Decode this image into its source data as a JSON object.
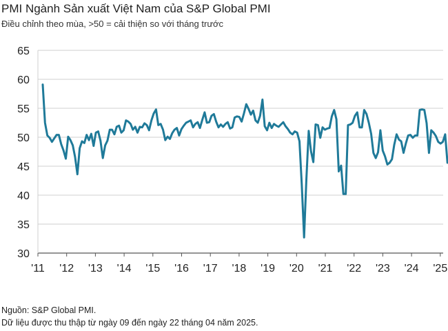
{
  "chart_data": {
    "type": "line",
    "title": "PMI Ngành Sản xuất Việt Nam của S&P Global PMI",
    "subtitle": "Điều chỉnh theo mùa, >50 = cải thiện so với tháng trước",
    "source_lines": [
      "Nguồn: S&P Global PMI.",
      "Dữ liệu được thu thập từ ngày 09 đến ngày 22 tháng 04 năm 2025."
    ],
    "ylim": [
      30,
      65
    ],
    "yticks": [
      "65",
      "60",
      "55",
      "50",
      "45",
      "40",
      "35",
      "30"
    ],
    "xticks": [
      "'11",
      "'12",
      "'13",
      "'14",
      "'15",
      "'16",
      "'17",
      "'18",
      "'19",
      "'20",
      "'21",
      "'22",
      "'23",
      "'24",
      "'25"
    ],
    "x_start": "2011-03",
    "x_end": "2025-04",
    "grid": true,
    "legend": "none",
    "line_color": "#1f7a99",
    "series": [
      {
        "values": [
          59.1,
          52.5,
          50.3,
          49.9,
          49.2,
          49.8,
          50.4,
          50.4,
          48.8,
          47.7,
          46.3,
          50.1,
          49.5,
          48.6,
          46.6,
          43.6,
          48.1,
          49.3,
          49.0,
          50.4,
          49.5,
          50.6,
          48.5,
          50.8,
          51.0,
          49.4,
          46.4,
          48.6,
          49.4,
          51.3,
          51.3,
          50.5,
          51.8,
          52.0,
          50.8,
          51.2,
          52.9,
          52.7,
          52.3,
          51.3,
          51.8,
          50.8,
          51.8,
          51.7,
          52.4,
          52.1,
          51.2,
          52.9,
          54.1,
          54.8,
          52.1,
          52.3,
          51.3,
          49.5,
          50.1,
          49.7,
          50.7,
          51.3,
          51.6,
          50.3,
          51.4,
          52.0,
          52.5,
          52.7,
          52.9,
          51.7,
          52.3,
          52.6,
          51.6,
          53.0,
          54.3,
          52.5,
          52.6,
          53.7,
          54.0,
          52.7,
          51.7,
          52.2,
          51.8,
          52.3,
          52.6,
          51.5,
          51.7,
          53.4,
          53.6,
          53.5,
          52.7,
          54.1,
          55.7,
          54.9,
          53.9,
          54.6,
          52.9,
          52.5,
          53.7,
          56.5,
          51.9,
          51.2,
          52.5,
          51.6,
          52.3,
          52.0,
          51.8,
          52.2,
          52.6,
          51.9,
          51.4,
          50.8,
          50.5,
          51.0,
          50.8,
          49.3,
          41.9,
          32.7,
          42.7,
          51.1,
          47.6,
          45.7,
          52.2,
          52.1,
          49.9,
          51.7,
          51.3,
          51.5,
          51.6,
          53.6,
          54.7,
          53.1,
          44.1,
          45.1,
          40.2,
          40.2,
          52.1,
          52.2,
          52.5,
          53.7,
          54.3,
          51.7,
          51.7,
          54.7,
          54.0,
          52.5,
          50.6,
          47.3,
          46.4,
          47.4,
          51.2,
          47.7,
          46.7,
          45.3,
          45.6,
          46.2,
          48.7,
          50.5,
          49.6,
          49.3,
          47.3,
          48.9,
          50.3,
          50.4,
          49.9,
          50.3,
          50.3,
          54.7,
          54.8,
          54.7,
          52.4,
          47.3,
          51.2,
          50.8,
          50.2,
          49.2,
          48.9,
          49.2,
          50.5,
          45.6
        ]
      }
    ]
  }
}
